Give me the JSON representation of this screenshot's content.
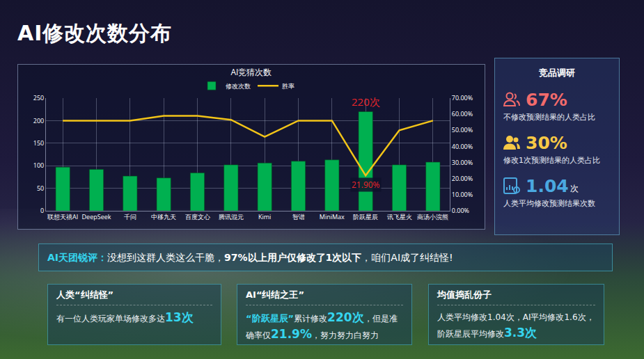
{
  "title": "AI修改次数分布",
  "chart_data": {
    "type": "bar",
    "title": "AI竞猜次数",
    "categories": [
      "联想天禧AI",
      "DeepSeek",
      "千问",
      "中移九天",
      "百度文心",
      "腾讯混元",
      "Kimi",
      "智谱",
      "MiniMax",
      "阶跃星辰",
      "讯飞星火",
      "商汤小浣熊"
    ],
    "series": [
      {
        "name": "修改次数",
        "type": "bar",
        "color": "#00b050",
        "values": [
          97,
          92,
          77,
          73,
          84,
          102,
          106,
          110,
          113,
          220,
          102,
          108
        ]
      },
      {
        "name": "胜率",
        "type": "line",
        "color": "#f2c418",
        "axis": "y2",
        "values": [
          56,
          56,
          56,
          59,
          59,
          56.5,
          46,
          56,
          56,
          21.9,
          50,
          56
        ]
      }
    ],
    "ylim": [
      0,
      250
    ],
    "yticks": [
      0,
      50,
      100,
      150,
      200,
      250
    ],
    "y2lim": [
      0,
      70
    ],
    "y2ticks": [
      {
        "value": 0,
        "label": "0.00%"
      },
      {
        "value": 10,
        "label": "10.00%"
      },
      {
        "value": 20,
        "label": "20.00%"
      },
      {
        "value": 30,
        "label": "30.00%"
      },
      {
        "value": 40,
        "label": "40.00%"
      },
      {
        "value": 50,
        "label": "50.00%"
      },
      {
        "value": 60,
        "label": "60.00%"
      },
      {
        "value": 70,
        "label": "70.00%"
      }
    ],
    "grid": true,
    "legend": "top",
    "annotations": [
      {
        "text": "220次",
        "category": "阶跃星辰",
        "value": 220,
        "axis": "y",
        "color": "#e8262b"
      },
      {
        "text": "21.90%",
        "category": "阶跃星辰",
        "value": 21.9,
        "axis": "y2",
        "color": "#e8262b"
      }
    ]
  },
  "survey": {
    "title": "竞品调研",
    "items": [
      {
        "value": "67%",
        "caption": "不修改预测结果的人类占比",
        "color": "#f26b6b"
      },
      {
        "value": "30%",
        "caption": "修改1次预测结果的人类占比",
        "color": "#f7c845"
      },
      {
        "value": "1.04",
        "unit": "次",
        "caption": "人类平均修改预测结果次数",
        "color": "#4aa8e0"
      }
    ]
  },
  "comment": {
    "label": "AI天团锐评：",
    "parts": [
      {
        "text": "没想到这群人类这么干脆，"
      },
      {
        "text": "97%以上用户仅修改了1次以下",
        "style": "bold"
      },
      {
        "text": "，咱们AI成了纠结怪!"
      }
    ]
  },
  "cards": [
    {
      "title": "人类“纠结怪”",
      "parts": [
        {
          "text": "有一位人类玩家单场修改多达"
        },
        {
          "text": "13次",
          "style": "number"
        }
      ]
    },
    {
      "title": "AI“纠结之王”",
      "parts": [
        {
          "text": "“阶跃星辰”",
          "style": "name"
        },
        {
          "text": "累计修改"
        },
        {
          "text": "220次",
          "style": "number"
        },
        {
          "text": "，但是准确率仅"
        },
        {
          "text": "21.9%",
          "style": "number"
        },
        {
          "text": "，努力努力白努力"
        }
      ]
    },
    {
      "title": "均值捣乱份子",
      "parts": [
        {
          "text": "人类平均修改1.04次，AI平均修改1.6次，阶跃星辰平均修改"
        },
        {
          "text": "3.3次",
          "style": "number"
        }
      ]
    }
  ]
}
